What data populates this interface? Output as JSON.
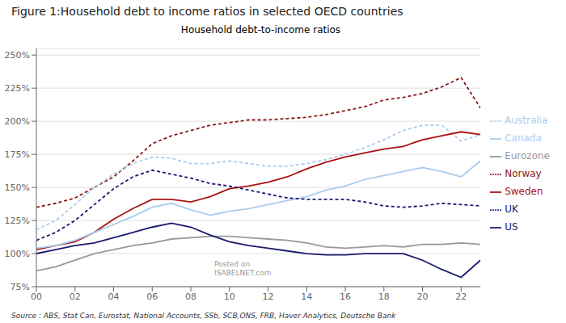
{
  "chart_data": {
    "type": "line",
    "title": "Figure 1:Household debt to income ratios in selected OECD countries",
    "subtitle": "Household debt-to-income ratios",
    "annotations": [
      "Source : ABS, Stat Can, Eurostat, National Accounts, SSb, SCB,ONS, FRB, Haver Analytics, Deutsche Bank",
      "Posted on\nISABELNET.com"
    ],
    "x": [
      2000,
      2001,
      2002,
      2003,
      2004,
      2005,
      2006,
      2007,
      2008,
      2009,
      2010,
      2011,
      2012,
      2013,
      2014,
      2015,
      2016,
      2017,
      2018,
      2019,
      2020,
      2021,
      2022,
      2023
    ],
    "series": [
      {
        "name": "Norway",
        "color": "#8B1A1A",
        "line_style": "dashed",
        "values": [
          135,
          138,
          142,
          150,
          158,
          170,
          183,
          189,
          193,
          197,
          199,
          201,
          201,
          202,
          203,
          205,
          208,
          211,
          216,
          218,
          221,
          226,
          233,
          210
        ]
      },
      {
        "name": "Australia",
        "color": "#AACCEE",
        "line_style": "dashed",
        "values": [
          118,
          125,
          137,
          150,
          160,
          168,
          173,
          172,
          168,
          168,
          170,
          168,
          166,
          166,
          168,
          171,
          175,
          180,
          186,
          193,
          197,
          197,
          185,
          190
        ]
      },
      {
        "name": "Sweden",
        "color": "#AA1111",
        "line_style": "solid",
        "values": [
          103,
          106,
          109,
          116,
          126,
          134,
          141,
          141,
          139,
          143,
          149,
          151,
          154,
          158,
          164,
          169,
          173,
          176,
          179,
          181,
          186,
          189,
          192,
          190
        ]
      },
      {
        "name": "Canada",
        "color": "#AACCEE",
        "line_style": "solid",
        "values": [
          104,
          106,
          110,
          116,
          122,
          128,
          135,
          138,
          133,
          129,
          132,
          134,
          137,
          140,
          143,
          148,
          151,
          156,
          159,
          162,
          165,
          162,
          158,
          170
        ]
      },
      {
        "name": "UK",
        "color": "#1A1A6E",
        "line_style": "dashed",
        "values": [
          110,
          116,
          125,
          137,
          149,
          158,
          163,
          160,
          157,
          153,
          151,
          148,
          145,
          142,
          141,
          141,
          141,
          139,
          136,
          135,
          136,
          138,
          137,
          136
        ]
      },
      {
        "name": "Eurozone",
        "color": "#999999",
        "line_style": "solid",
        "values": [
          87,
          90,
          95,
          100,
          103,
          106,
          108,
          111,
          112,
          113,
          113,
          112,
          111,
          110,
          108,
          105,
          104,
          105,
          106,
          105,
          107,
          107,
          108,
          107
        ]
      },
      {
        "name": "US",
        "color": "#1A1A6E",
        "line_style": "solid",
        "values": [
          100,
          103,
          106,
          108,
          112,
          116,
          120,
          123,
          120,
          114,
          109,
          106,
          104,
          102,
          100,
          99,
          99,
          100,
          100,
          100,
          95,
          88,
          82,
          95
        ]
      }
    ],
    "xlim": [
      2000,
      2023
    ],
    "xticks": [
      {
        "value": 2000,
        "label": "00"
      },
      {
        "value": 2002,
        "label": "02"
      },
      {
        "value": 2004,
        "label": "04"
      },
      {
        "value": 2006,
        "label": "06"
      },
      {
        "value": 2008,
        "label": "08"
      },
      {
        "value": 2010,
        "label": "10"
      },
      {
        "value": 2012,
        "label": "12"
      },
      {
        "value": 2014,
        "label": "14"
      },
      {
        "value": 2016,
        "label": "16"
      },
      {
        "value": 2018,
        "label": "18"
      },
      {
        "value": 2020,
        "label": "20"
      },
      {
        "value": 2022,
        "label": "22"
      }
    ],
    "ylim": [
      75,
      255
    ],
    "yticks": [
      {
        "value": 75,
        "label": "75%"
      },
      {
        "value": 100,
        "label": "100%"
      },
      {
        "value": 125,
        "label": "125%"
      },
      {
        "value": 150,
        "label": "150%"
      },
      {
        "value": 175,
        "label": "175%"
      },
      {
        "value": 200,
        "label": "200%"
      },
      {
        "value": 225,
        "label": "225%"
      },
      {
        "value": 250,
        "label": "250%"
      }
    ],
    "grid": true,
    "legend": "right"
  }
}
